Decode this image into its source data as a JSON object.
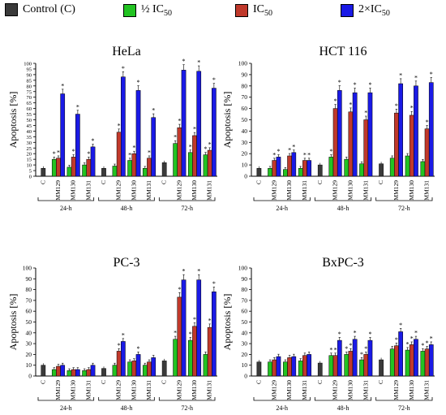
{
  "legend": [
    {
      "label": "Control (C)",
      "sub": "",
      "color": "#3a3a3a"
    },
    {
      "label": "½ IC",
      "sub": "50",
      "color": "#22c322"
    },
    {
      "label": "IC",
      "sub": "50",
      "color": "#c0392b"
    },
    {
      "label": "2×IC",
      "sub": "50",
      "color": "#1a1ae6"
    }
  ],
  "colors": {
    "control": "#3a3a3a",
    "half": "#22c322",
    "ic50": "#c0392b",
    "double": "#1a1ae6"
  },
  "chart_data": [
    {
      "type": "bar",
      "title": "HeLa",
      "ylabel": "Apoptosis [%]",
      "ylim": [
        0,
        100
      ],
      "yticks": [
        0,
        5,
        10,
        15,
        20,
        25,
        30,
        35,
        40,
        45,
        50,
        55,
        60,
        65,
        70,
        75,
        80,
        85,
        90,
        95,
        100
      ],
      "compound_labels": [
        "C",
        "MM129",
        "MM130",
        "MM131"
      ],
      "time_groups": [
        "24-h",
        "48-h",
        "72-h"
      ],
      "control": [
        7,
        7,
        12
      ],
      "series": [
        {
          "values": [
            [
              15,
              16,
              73
            ],
            [
              8,
              17,
              55
            ],
            [
              10,
              15,
              26
            ]
          ]
        },
        {
          "values": [
            [
              9,
              39,
              88
            ],
            [
              14,
              20,
              76
            ],
            [
              7,
              16,
              52
            ]
          ]
        },
        {
          "values": [
            [
              29,
              43,
              94
            ],
            [
              21,
              36,
              93
            ],
            [
              19,
              23,
              78
            ]
          ]
        }
      ],
      "stars": [
        [
          [
            1,
            1,
            1
          ],
          [
            0,
            1,
            1
          ],
          [
            0,
            1,
            1
          ]
        ],
        [
          [
            0,
            1,
            1
          ],
          [
            1,
            1,
            1
          ],
          [
            0,
            1,
            1
          ]
        ],
        [
          [
            1,
            1,
            1
          ],
          [
            1,
            1,
            1
          ],
          [
            1,
            1,
            1
          ]
        ]
      ]
    },
    {
      "type": "bar",
      "title": "HCT 116",
      "ylabel": "Apoptosis [%]",
      "ylim": [
        0,
        100
      ],
      "yticks": [
        0,
        10,
        20,
        30,
        40,
        50,
        60,
        70,
        80,
        90,
        100
      ],
      "compound_labels": [
        "C",
        "MM129",
        "MM130",
        "MM131"
      ],
      "time_groups": [
        "24-h",
        "48-h",
        "72-h"
      ],
      "control": [
        7,
        10,
        11
      ],
      "series": [
        {
          "values": [
            [
              7,
              14,
              17
            ],
            [
              6,
              18,
              21
            ],
            [
              7,
              14,
              14
            ]
          ]
        },
        {
          "values": [
            [
              17,
              60,
              76
            ],
            [
              15,
              57,
              74
            ],
            [
              11,
              50,
              74
            ]
          ]
        },
        {
          "values": [
            [
              16,
              56,
              82
            ],
            [
              18,
              54,
              80
            ],
            [
              13,
              42,
              83
            ]
          ]
        }
      ],
      "stars": [
        [
          [
            0,
            1,
            1
          ],
          [
            0,
            1,
            1
          ],
          [
            0,
            1,
            1
          ]
        ],
        [
          [
            1,
            1,
            1
          ],
          [
            0,
            1,
            1
          ],
          [
            0,
            1,
            1
          ]
        ],
        [
          [
            0,
            1,
            1
          ],
          [
            0,
            1,
            1
          ],
          [
            0,
            1,
            1
          ]
        ]
      ]
    },
    {
      "type": "bar",
      "title": "PC-3",
      "ylabel": "Apoptosis [%]",
      "ylim": [
        0,
        100
      ],
      "yticks": [
        0,
        10,
        20,
        30,
        40,
        50,
        60,
        70,
        80,
        90,
        100
      ],
      "compound_labels": [
        "C",
        "MM129",
        "MM130",
        "MM131"
      ],
      "time_groups": [
        "24-h",
        "48-h",
        "72-h"
      ],
      "control": [
        10,
        7,
        14
      ],
      "series": [
        {
          "values": [
            [
              6,
              9,
              10
            ],
            [
              5,
              6,
              6
            ],
            [
              5,
              6,
              10
            ]
          ]
        },
        {
          "values": [
            [
              10,
              23,
              32
            ],
            [
              13,
              14,
              20
            ],
            [
              10,
              13,
              17
            ]
          ]
        },
        {
          "values": [
            [
              34,
              73,
              89
            ],
            [
              33,
              46,
              89
            ],
            [
              20,
              45,
              78
            ]
          ]
        }
      ],
      "stars": [
        [
          [
            0,
            0,
            0
          ],
          [
            0,
            0,
            0
          ],
          [
            0,
            0,
            0
          ]
        ],
        [
          [
            0,
            1,
            1
          ],
          [
            0,
            0,
            1
          ],
          [
            0,
            0,
            0
          ]
        ],
        [
          [
            1,
            1,
            1
          ],
          [
            1,
            1,
            1
          ],
          [
            0,
            1,
            1
          ]
        ]
      ]
    },
    {
      "type": "bar",
      "title": "BxPC-3",
      "ylabel": "Apoptosis [%]",
      "ylim": [
        0,
        100
      ],
      "yticks": [
        0,
        10,
        20,
        30,
        40,
        50,
        60,
        70,
        80,
        90,
        100
      ],
      "compound_labels": [
        "C",
        "MM129",
        "MM130",
        "MM131"
      ],
      "time_groups": [
        "24-h",
        "48-h",
        "72-h"
      ],
      "control": [
        13,
        12,
        15
      ],
      "series": [
        {
          "values": [
            [
              13,
              15,
              18
            ],
            [
              13,
              17,
              18
            ],
            [
              14,
              19,
              20
            ]
          ]
        },
        {
          "values": [
            [
              19,
              19,
              33
            ],
            [
              20,
              23,
              34
            ],
            [
              15,
              20,
              33
            ]
          ]
        },
        {
          "values": [
            [
              25,
              28,
              41
            ],
            [
              24,
              29,
              34
            ],
            [
              23,
              25,
              29
            ]
          ]
        }
      ],
      "stars": [
        [
          [
            0,
            0,
            0
          ],
          [
            0,
            0,
            0
          ],
          [
            0,
            0,
            0
          ]
        ],
        [
          [
            1,
            1,
            1
          ],
          [
            1,
            1,
            1
          ],
          [
            1,
            1,
            1
          ]
        ],
        [
          [
            0,
            1,
            1
          ],
          [
            1,
            1,
            1
          ],
          [
            1,
            1,
            1
          ]
        ]
      ]
    }
  ]
}
